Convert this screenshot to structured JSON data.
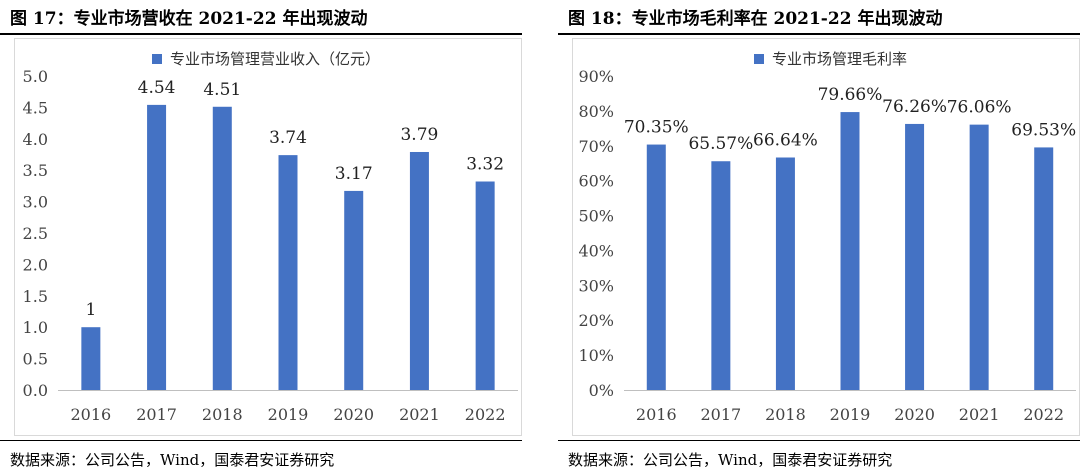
{
  "figures": [
    {
      "title": "图 17：专业市场营收在 2021-22 年出现波动",
      "source": "数据来源：公司公告，Wind，国泰君安证券研究",
      "chart_data": {
        "type": "bar",
        "categories": [
          "2016",
          "2017",
          "2018",
          "2019",
          "2020",
          "2021",
          "2022"
        ],
        "series": [
          {
            "name": "专业市场管理营业收入（亿元）",
            "values": [
              1,
              4.54,
              4.51,
              3.74,
              3.17,
              3.79,
              3.32
            ]
          }
        ],
        "data_labels": [
          "1",
          "4.54",
          "4.51",
          "3.74",
          "3.17",
          "3.79",
          "3.32"
        ],
        "yticks": [
          "0.0",
          "0.5",
          "1.0",
          "1.5",
          "2.0",
          "2.5",
          "3.0",
          "3.5",
          "4.0",
          "4.5",
          "5.0"
        ],
        "ylim": [
          0,
          5
        ],
        "grid": false,
        "legend_position": "top-center",
        "bar_color": "#4472C4",
        "title": "",
        "xlabel": "",
        "ylabel": ""
      }
    },
    {
      "title": "图 18：专业市场毛利率在 2021-22 年出现波动",
      "source": "数据来源：公司公告，Wind，国泰君安证券研究",
      "chart_data": {
        "type": "bar",
        "categories": [
          "2016",
          "2017",
          "2018",
          "2019",
          "2020",
          "2021",
          "2022"
        ],
        "series": [
          {
            "name": "专业市场管理毛利率",
            "values": [
              70.35,
              65.57,
              66.64,
              79.66,
              76.26,
              76.06,
              69.53
            ]
          }
        ],
        "data_labels": [
          "70.35%",
          "65.57%",
          "66.64%",
          "79.66%",
          "76.26%",
          "76.06%",
          "69.53%"
        ],
        "yticks": [
          "0%",
          "10%",
          "20%",
          "30%",
          "40%",
          "50%",
          "60%",
          "70%",
          "80%",
          "90%"
        ],
        "ylim": [
          0,
          90
        ],
        "grid": false,
        "legend_position": "top-center",
        "bar_color": "#4472C4",
        "title": "",
        "xlabel": "",
        "ylabel": ""
      }
    }
  ]
}
